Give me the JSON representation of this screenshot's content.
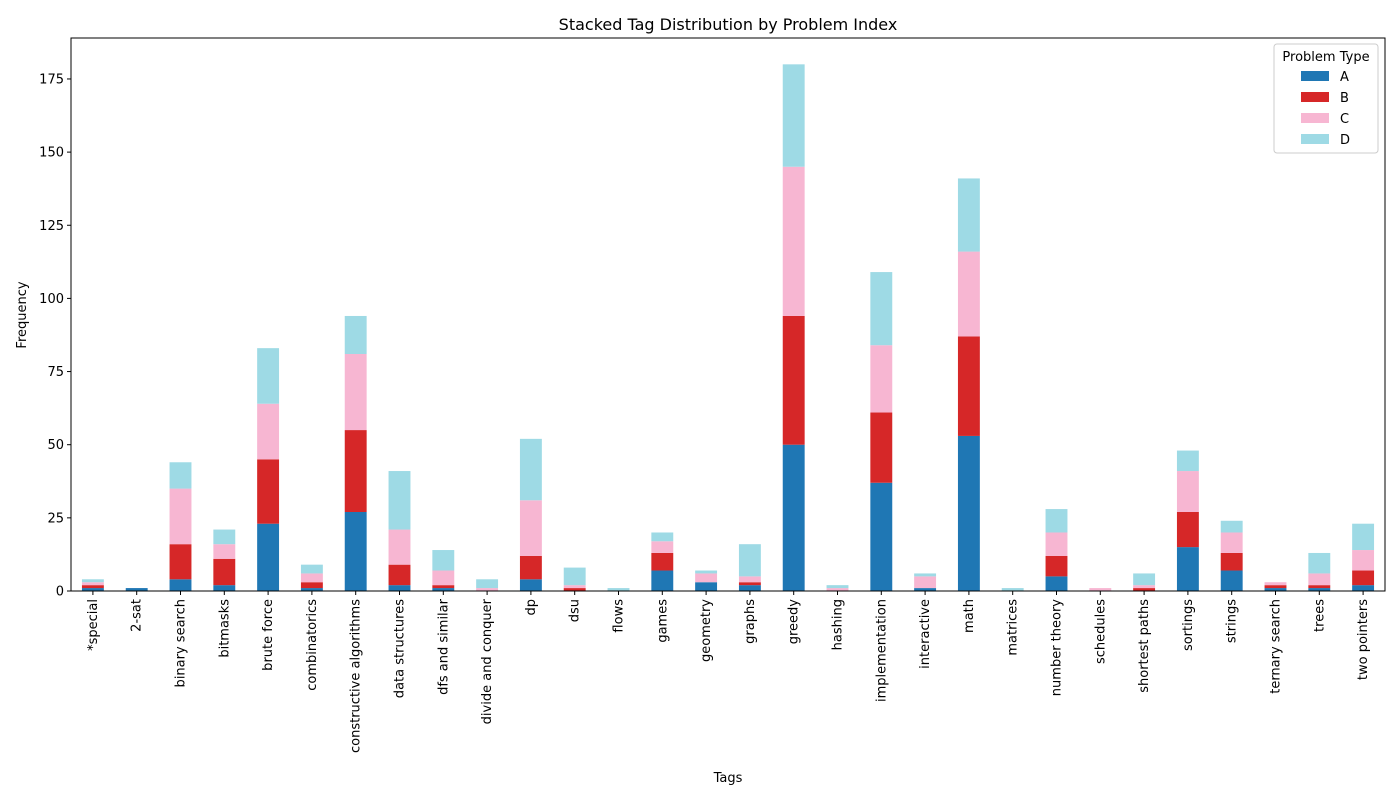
{
  "chart_data": {
    "type": "bar",
    "stacked": true,
    "title": "Stacked Tag Distribution by Problem Index",
    "xlabel": "Tags",
    "ylabel": "Frequency",
    "ylim": [
      0,
      189
    ],
    "yticks": [
      0,
      25,
      50,
      75,
      100,
      125,
      150,
      175
    ],
    "grid": false,
    "legend": {
      "title": "Problem Type",
      "placement": "top-right"
    },
    "categories": [
      "*special",
      "2-sat",
      "binary search",
      "bitmasks",
      "brute force",
      "combinatorics",
      "constructive algorithms",
      "data structures",
      "dfs and similar",
      "divide and conquer",
      "dp",
      "dsu",
      "flows",
      "games",
      "geometry",
      "graphs",
      "greedy",
      "hashing",
      "implementation",
      "interactive",
      "math",
      "matrices",
      "number theory",
      "schedules",
      "shortest paths",
      "sortings",
      "strings",
      "ternary search",
      "trees",
      "two pointers"
    ],
    "series": [
      {
        "name": "A",
        "color": "#1f77b4",
        "values": [
          1,
          1,
          4,
          2,
          23,
          1,
          27,
          2,
          1,
          0,
          4,
          0,
          0,
          7,
          3,
          2,
          50,
          0,
          37,
          1,
          53,
          0,
          5,
          0,
          0,
          15,
          7,
          1,
          1,
          2
        ]
      },
      {
        "name": "B",
        "color": "#d62728",
        "values": [
          1,
          0,
          12,
          9,
          22,
          2,
          28,
          7,
          1,
          0,
          8,
          1,
          0,
          6,
          0,
          1,
          44,
          0,
          24,
          0,
          34,
          0,
          7,
          0,
          1,
          12,
          6,
          1,
          1,
          5
        ]
      },
      {
        "name": "C",
        "color": "#f7b6d2",
        "values": [
          1,
          0,
          19,
          5,
          19,
          3,
          26,
          12,
          5,
          1,
          19,
          1,
          0,
          4,
          3,
          2,
          51,
          1,
          23,
          4,
          29,
          0,
          8,
          1,
          1,
          14,
          7,
          1,
          4,
          7
        ]
      },
      {
        "name": "D",
        "color": "#9edae5",
        "values": [
          1,
          0,
          9,
          5,
          19,
          3,
          13,
          20,
          7,
          3,
          21,
          6,
          1,
          3,
          1,
          11,
          35,
          1,
          25,
          1,
          25,
          1,
          8,
          0,
          4,
          7,
          4,
          0,
          7,
          9
        ]
      }
    ]
  }
}
